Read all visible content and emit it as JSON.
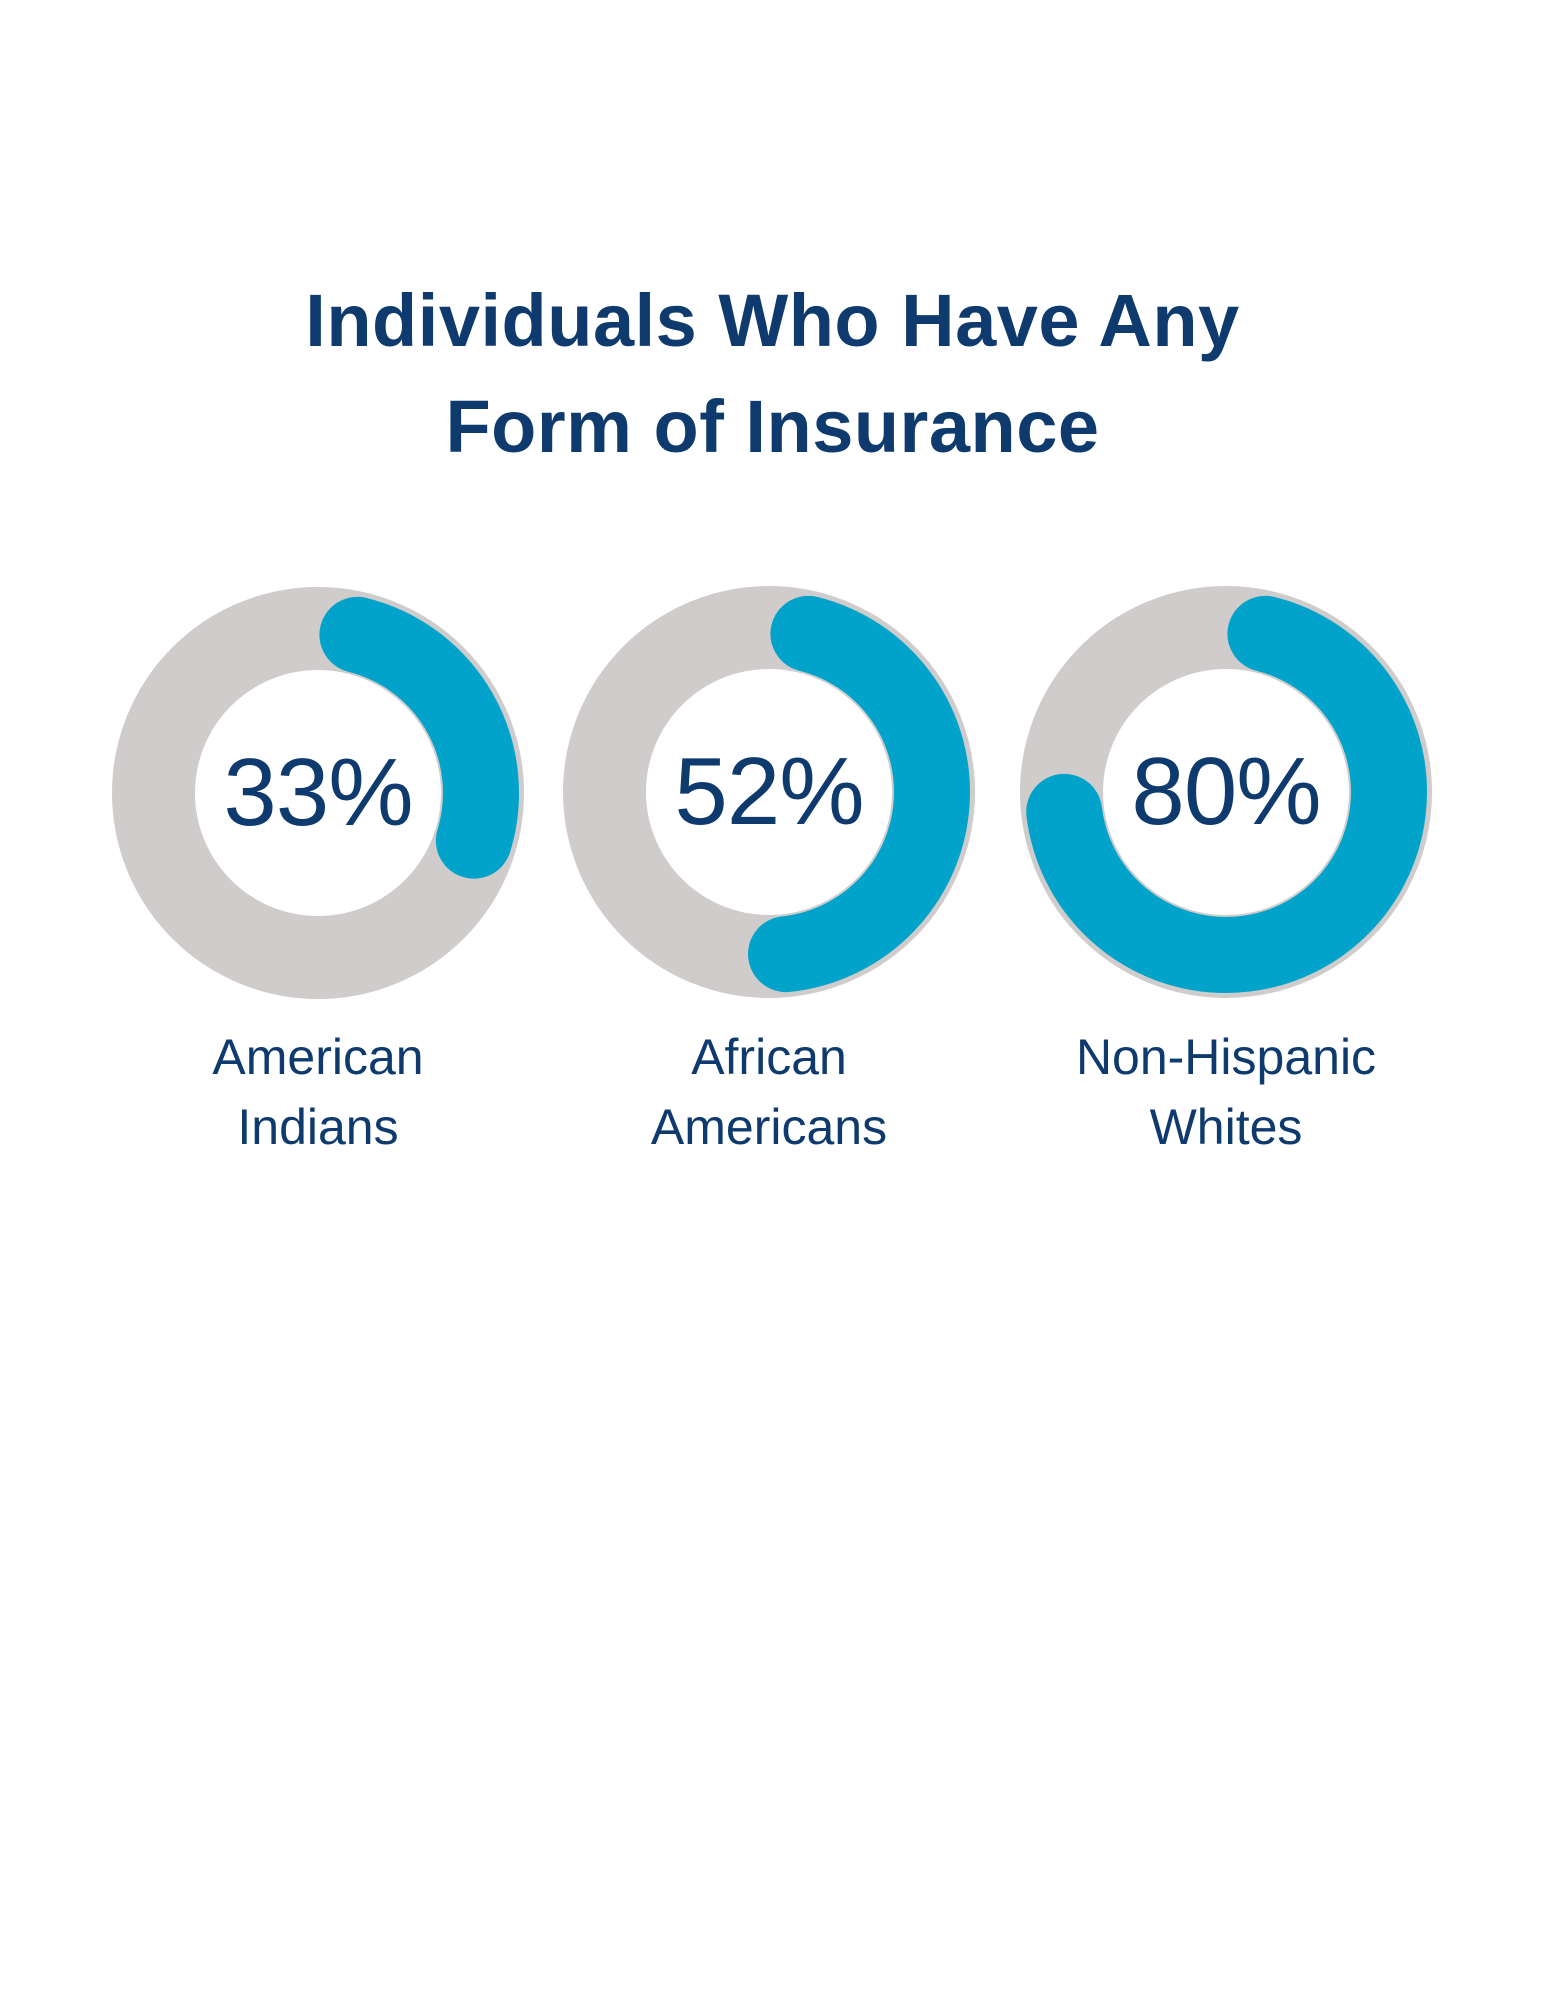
{
  "title": {
    "line1": "Individuals Who Have Any",
    "line2": "Form of Insurance"
  },
  "colors": {
    "text": "#0f3a6e",
    "track": "#cfcccb",
    "arc": "#02a3cb",
    "background": "#ffffff"
  },
  "donuts": [
    {
      "value_label": "33%",
      "label_line1": "American",
      "label_line2": "Indians",
      "arc_end_deg": 107
    },
    {
      "value_label": "52%",
      "label_line1": "African",
      "label_line2": "Americans",
      "arc_end_deg": 174
    },
    {
      "value_label": "80%",
      "label_line1": "Non-Hispanic",
      "label_line2": "Whites",
      "arc_end_deg": 263
    }
  ],
  "chart_data": {
    "type": "pie",
    "subtype": "donut",
    "title": "Individuals Who Have Any Form of Insurance",
    "categories": [
      "American Indians",
      "African Americans",
      "Non-Hispanic Whites"
    ],
    "values": [
      33,
      52,
      80
    ],
    "unit": "%",
    "xlabel": "",
    "ylabel": "",
    "legend": "none"
  }
}
